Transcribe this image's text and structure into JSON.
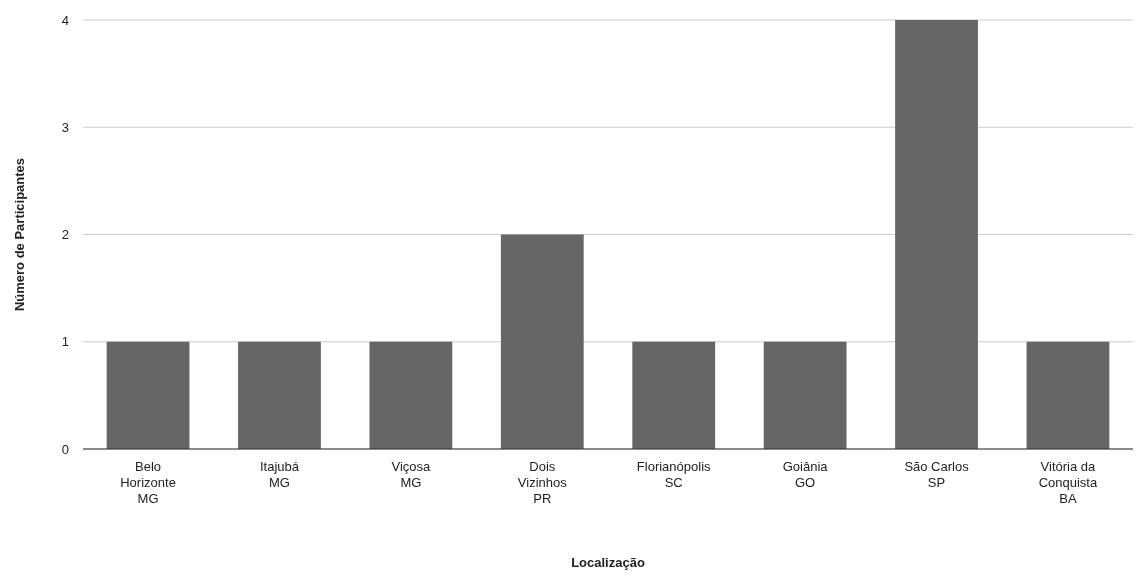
{
  "chart_data": {
    "type": "bar",
    "xlabel": "Localização",
    "ylabel": "Número de Participantes",
    "categories": [
      "Belo\nHorizonte\nMG",
      "Itajubá\nMG",
      "Viçosa\nMG",
      "Dois\nVizinhos\nPR",
      "Florianópolis\nSC",
      "Goiânia\nGO",
      "São Carlos\nSP",
      "Vitória da\nConquista\nBA"
    ],
    "values": [
      1,
      1,
      1,
      2,
      1,
      1,
      4,
      1
    ],
    "color": "#666666",
    "ylim": [
      0,
      4
    ],
    "yticks": [
      0,
      1,
      2,
      3,
      4
    ],
    "grid": "y"
  }
}
